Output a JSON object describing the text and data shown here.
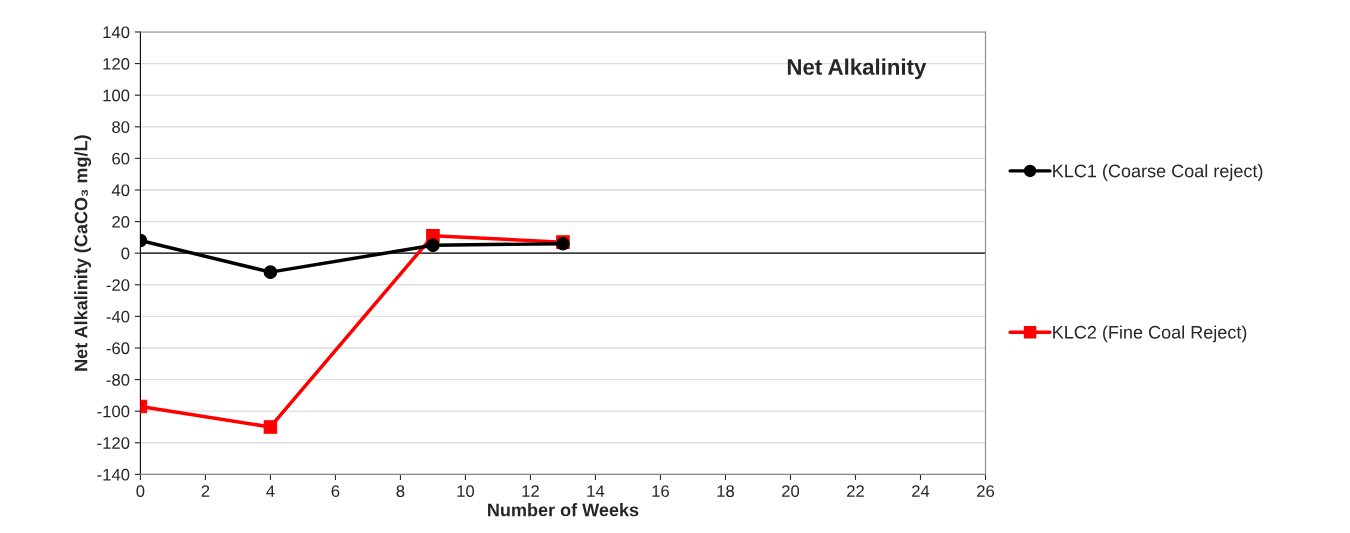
{
  "chart_data": {
    "type": "line",
    "title": "Net Alkalinity",
    "xlabel": "Number of Weeks",
    "ylabel": "Net Alkalinity (CaCO₃ mg/L)",
    "x": [
      0,
      4,
      9,
      13
    ],
    "series": [
      {
        "name": "KLC1 (Coarse Coal reject)",
        "color": "#000000",
        "marker": "circle",
        "values": [
          8,
          -12,
          5,
          6
        ]
      },
      {
        "name": "KLC2 (Fine Coal Reject)",
        "color": "#ff0000",
        "marker": "square",
        "values": [
          -97,
          -110,
          11,
          7
        ]
      }
    ],
    "xlim": [
      0,
      26
    ],
    "xticks": [
      0,
      2,
      4,
      6,
      8,
      10,
      12,
      14,
      16,
      18,
      20,
      22,
      24,
      26
    ],
    "ylim": [
      -140,
      140
    ],
    "yticks": [
      -140,
      -120,
      -100,
      -80,
      -60,
      -40,
      -20,
      0,
      20,
      40,
      60,
      80,
      100,
      120,
      140
    ],
    "ref_lines": [
      {
        "axis": "y",
        "value": 0,
        "color": "#000000"
      }
    ],
    "grid": "y",
    "legend": "right",
    "line_style": "solid"
  }
}
